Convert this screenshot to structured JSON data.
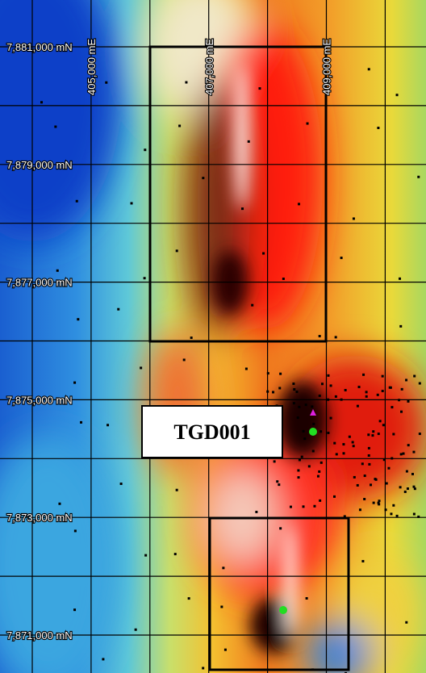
{
  "northing_labels": [
    "7,881,000 mN",
    "7,879,000 mN",
    "7,877,000 mN",
    "7,875,000 mN",
    "7,873,000 mN",
    "7,871,000 mN"
  ],
  "easting_labels": [
    "405,000 mE",
    "407,000 mE",
    "409,000 mE"
  ],
  "callout": "TGD001"
}
